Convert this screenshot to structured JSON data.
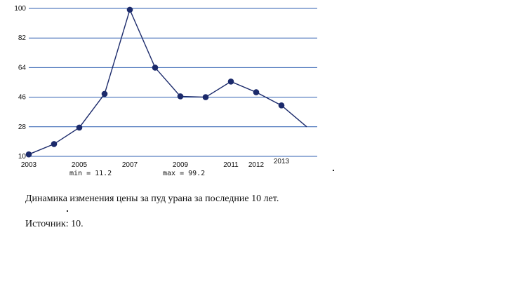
{
  "chart_data": {
    "type": "line",
    "x": [
      2003,
      2004,
      2005,
      2006,
      2007,
      2008,
      2009,
      2010,
      2011,
      2012,
      2013,
      2014
    ],
    "y": [
      11.2,
      17.5,
      27.5,
      48.0,
      99.2,
      64.0,
      46.5,
      46.0,
      55.5,
      49.0,
      41.0,
      28.0
    ],
    "x_tick_labels": [
      {
        "x": 2003,
        "label": "2003"
      },
      {
        "x": 2005,
        "label": "2005"
      },
      {
        "x": 2007,
        "label": "2007"
      },
      {
        "x": 2009,
        "label": "2009"
      },
      {
        "x": 2011,
        "label": "2011"
      },
      {
        "x": 2012,
        "label": "2012"
      },
      {
        "x": 2013,
        "label": "2013"
      }
    ],
    "y_ticks": [
      10,
      28,
      46,
      64,
      82,
      100
    ],
    "ylim": [
      10,
      100
    ],
    "xlim": [
      2003,
      2014
    ],
    "grid": "horizontal",
    "line_color": "#1b2a6b",
    "grid_color": "#2f5fb0",
    "annotations": [
      "min = 11.2",
      "max = 99.2"
    ]
  },
  "caption": "Динамика изменения цены за пуд урана за последние 10 лет.",
  "source": "Источник: 10."
}
